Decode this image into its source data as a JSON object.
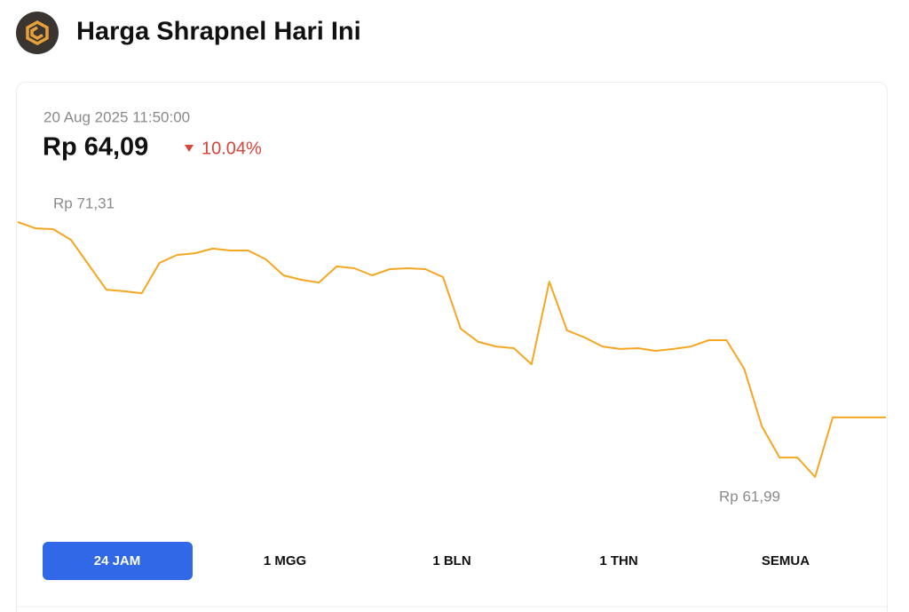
{
  "header": {
    "title": "Harga Shrapnel Hari Ini"
  },
  "card": {
    "timestamp": "20 Aug 2025 11:50:00",
    "price": "Rp 64,09",
    "change": "10.04%"
  },
  "chart_data": {
    "type": "line",
    "color": "#f5a623",
    "high": {
      "value": 71.31,
      "label": "Rp 71,31"
    },
    "low": {
      "value": 61.99,
      "label": "Rp 61,99"
    },
    "values": [
      71.31,
      71.08,
      71.05,
      70.66,
      69.75,
      68.84,
      68.78,
      68.71,
      69.82,
      70.11,
      70.17,
      70.34,
      70.27,
      70.27,
      69.95,
      69.36,
      69.2,
      69.1,
      69.69,
      69.62,
      69.36,
      69.59,
      69.62,
      69.59,
      69.3,
      67.41,
      66.93,
      66.76,
      66.7,
      66.11,
      69.13,
      67.35,
      67.09,
      66.76,
      66.67,
      66.7,
      66.6,
      66.67,
      66.76,
      66.99,
      66.99,
      65.95,
      63.84,
      62.7,
      62.7,
      61.99,
      64.17,
      64.17,
      64.17,
      64.17
    ]
  },
  "tabs": [
    "24 JAM",
    "1 MGG",
    "1 BLN",
    "1 THN",
    "SEMUA"
  ],
  "active_tab": 0
}
